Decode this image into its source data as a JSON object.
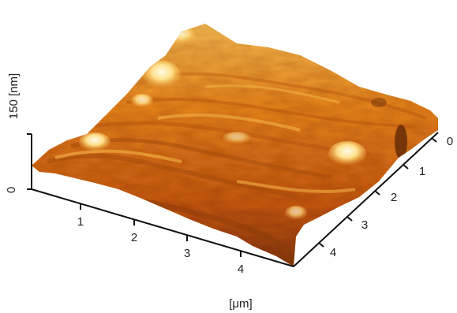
{
  "figure": {
    "z_axis": {
      "label": "150 [nm]",
      "ticks": [
        "0"
      ]
    },
    "x_axis": {
      "label": "[μm]",
      "ticks": [
        "1",
        "2",
        "3",
        "4"
      ]
    },
    "y_axis": {
      "ticks": [
        "0",
        "1",
        "2",
        "3",
        "4"
      ]
    },
    "colors": {
      "low": "#8a3a08",
      "mid": "#e8861b",
      "high": "#fff6d8",
      "axis": "#111111"
    }
  }
}
